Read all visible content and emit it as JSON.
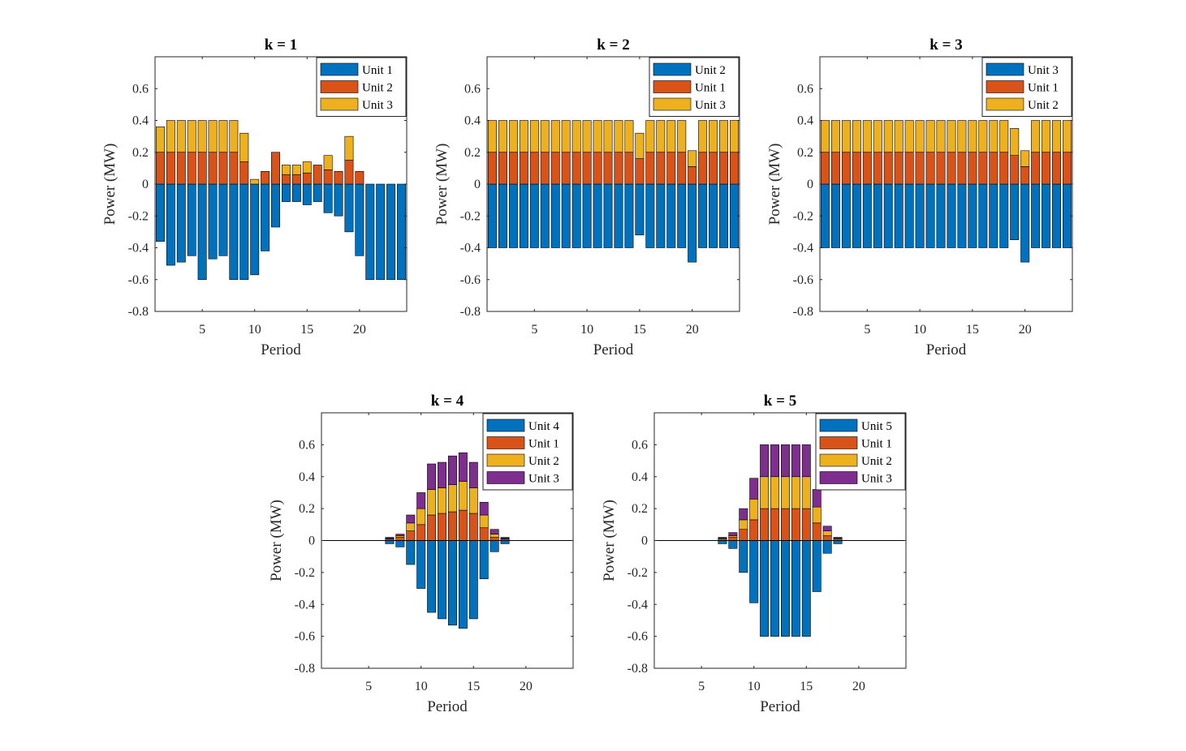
{
  "chart_data": [
    {
      "type": "bar",
      "stacked": true,
      "title": "k = 1",
      "xlabel": "Period",
      "ylabel": "Power (MW)",
      "xlim": [
        0.5,
        24.5
      ],
      "ylim": [
        -0.8,
        0.8
      ],
      "xticks": [
        5,
        10,
        15,
        20
      ],
      "yticks": [
        -0.8,
        -0.6,
        -0.4,
        -0.2,
        0,
        0.2,
        0.4,
        0.6
      ],
      "ytick_labels": [
        "-0.8",
        "-0.6",
        "-0.4",
        "-0.2",
        "0",
        "0.2",
        "0.4",
        "0.6"
      ],
      "grid": false,
      "legend_position": "top-right",
      "x": [
        1,
        2,
        3,
        4,
        5,
        6,
        7,
        8,
        9,
        10,
        11,
        12,
        13,
        14,
        15,
        16,
        17,
        18,
        19,
        20,
        21,
        22,
        23,
        24
      ],
      "series": [
        {
          "name": "Unit 1",
          "color": "#0072BD",
          "values": [
            -0.36,
            -0.51,
            -0.49,
            -0.45,
            -0.6,
            -0.47,
            -0.45,
            -0.6,
            -0.6,
            -0.57,
            -0.42,
            -0.27,
            -0.11,
            -0.11,
            -0.13,
            -0.11,
            -0.18,
            -0.2,
            -0.3,
            -0.45,
            -0.6,
            -0.6,
            -0.6,
            -0.6
          ]
        },
        {
          "name": "Unit 2",
          "color": "#D95319",
          "values": [
            0.2,
            0.2,
            0.2,
            0.2,
            0.2,
            0.2,
            0.2,
            0.2,
            0.14,
            0,
            0.08,
            0.2,
            0.06,
            0.06,
            0.07,
            0.12,
            0.09,
            0.08,
            0.15,
            0.08,
            0,
            0,
            0,
            0
          ]
        },
        {
          "name": "Unit 3",
          "color": "#EDB120",
          "values": [
            0.16,
            0.2,
            0.2,
            0.2,
            0.2,
            0.2,
            0.2,
            0.2,
            0.18,
            0.03,
            0,
            0,
            0.06,
            0.06,
            0.07,
            0,
            0.09,
            0,
            0.15,
            0,
            0,
            0,
            0,
            0
          ]
        }
      ]
    },
    {
      "type": "bar",
      "stacked": true,
      "title": "k = 2",
      "xlabel": "Period",
      "ylabel": "Power (MW)",
      "xlim": [
        0.5,
        24.5
      ],
      "ylim": [
        -0.8,
        0.8
      ],
      "xticks": [
        5,
        10,
        15,
        20
      ],
      "yticks": [
        -0.8,
        -0.6,
        -0.4,
        -0.2,
        0,
        0.2,
        0.4,
        0.6
      ],
      "ytick_labels": [
        "-0.8",
        "-0.6",
        "-0.4",
        "-0.2",
        "0",
        "0.2",
        "0.4",
        "0.6"
      ],
      "grid": false,
      "legend_position": "top-right",
      "x": [
        1,
        2,
        3,
        4,
        5,
        6,
        7,
        8,
        9,
        10,
        11,
        12,
        13,
        14,
        15,
        16,
        17,
        18,
        19,
        20,
        21,
        22,
        23,
        24
      ],
      "series": [
        {
          "name": "Unit 2",
          "color": "#0072BD",
          "values": [
            -0.4,
            -0.4,
            -0.4,
            -0.4,
            -0.4,
            -0.4,
            -0.4,
            -0.4,
            -0.4,
            -0.4,
            -0.4,
            -0.4,
            -0.4,
            -0.4,
            -0.32,
            -0.4,
            -0.4,
            -0.4,
            -0.4,
            -0.49,
            -0.4,
            -0.4,
            -0.4,
            -0.4
          ]
        },
        {
          "name": "Unit 1",
          "color": "#D95319",
          "values": [
            0.2,
            0.2,
            0.2,
            0.2,
            0.2,
            0.2,
            0.2,
            0.2,
            0.2,
            0.2,
            0.2,
            0.2,
            0.2,
            0.2,
            0.16,
            0.2,
            0.2,
            0.2,
            0.2,
            0.11,
            0.2,
            0.2,
            0.2,
            0.2
          ]
        },
        {
          "name": "Unit 3",
          "color": "#EDB120",
          "values": [
            0.2,
            0.2,
            0.2,
            0.2,
            0.2,
            0.2,
            0.2,
            0.2,
            0.2,
            0.2,
            0.2,
            0.2,
            0.2,
            0.2,
            0.16,
            0.2,
            0.2,
            0.2,
            0.2,
            0.1,
            0.2,
            0.2,
            0.2,
            0.2
          ]
        }
      ]
    },
    {
      "type": "bar",
      "stacked": true,
      "title": "k = 3",
      "xlabel": "Period",
      "ylabel": "Power (MW)",
      "xlim": [
        0.5,
        24.5
      ],
      "ylim": [
        -0.8,
        0.8
      ],
      "xticks": [
        5,
        10,
        15,
        20
      ],
      "yticks": [
        -0.8,
        -0.6,
        -0.4,
        -0.2,
        0,
        0.2,
        0.4,
        0.6
      ],
      "ytick_labels": [
        "-0.8",
        "-0.6",
        "-0.4",
        "-0.2",
        "0",
        "0.2",
        "0.4",
        "0.6"
      ],
      "grid": false,
      "legend_position": "top-right",
      "x": [
        1,
        2,
        3,
        4,
        5,
        6,
        7,
        8,
        9,
        10,
        11,
        12,
        13,
        14,
        15,
        16,
        17,
        18,
        19,
        20,
        21,
        22,
        23,
        24
      ],
      "series": [
        {
          "name": "Unit 3",
          "color": "#0072BD",
          "values": [
            -0.4,
            -0.4,
            -0.4,
            -0.4,
            -0.4,
            -0.4,
            -0.4,
            -0.4,
            -0.4,
            -0.4,
            -0.4,
            -0.4,
            -0.4,
            -0.4,
            -0.4,
            -0.4,
            -0.4,
            -0.4,
            -0.35,
            -0.49,
            -0.4,
            -0.4,
            -0.4,
            -0.4
          ]
        },
        {
          "name": "Unit 1",
          "color": "#D95319",
          "values": [
            0.2,
            0.2,
            0.2,
            0.2,
            0.2,
            0.2,
            0.2,
            0.2,
            0.2,
            0.2,
            0.2,
            0.2,
            0.2,
            0.2,
            0.2,
            0.2,
            0.2,
            0.2,
            0.18,
            0.11,
            0.2,
            0.2,
            0.2,
            0.2
          ]
        },
        {
          "name": "Unit 2",
          "color": "#EDB120",
          "values": [
            0.2,
            0.2,
            0.2,
            0.2,
            0.2,
            0.2,
            0.2,
            0.2,
            0.2,
            0.2,
            0.2,
            0.2,
            0.2,
            0.2,
            0.2,
            0.2,
            0.2,
            0.2,
            0.17,
            0.1,
            0.2,
            0.2,
            0.2,
            0.2
          ]
        }
      ]
    },
    {
      "type": "bar",
      "stacked": true,
      "title": "k = 4",
      "xlabel": "Period",
      "ylabel": "Power (MW)",
      "xlim": [
        0.5,
        24.5
      ],
      "ylim": [
        -0.8,
        0.8
      ],
      "xticks": [
        5,
        10,
        15,
        20
      ],
      "yticks": [
        -0.8,
        -0.6,
        -0.4,
        -0.2,
        0,
        0.2,
        0.4,
        0.6
      ],
      "ytick_labels": [
        "-0.8",
        "-0.6",
        "-0.4",
        "-0.2",
        "0",
        "0.2",
        "0.4",
        "0.6"
      ],
      "grid": false,
      "zero_line": true,
      "legend_position": "top-right",
      "x": [
        1,
        2,
        3,
        4,
        5,
        6,
        7,
        8,
        9,
        10,
        11,
        12,
        13,
        14,
        15,
        16,
        17,
        18,
        19,
        20,
        21,
        22,
        23,
        24
      ],
      "series": [
        {
          "name": "Unit 4",
          "color": "#0072BD",
          "values": [
            0,
            0,
            0,
            0,
            0,
            0,
            -0.02,
            -0.04,
            -0.15,
            -0.3,
            -0.45,
            -0.49,
            -0.53,
            -0.55,
            -0.49,
            -0.24,
            -0.07,
            -0.02,
            0,
            0,
            0,
            0,
            0,
            0
          ]
        },
        {
          "name": "Unit 1",
          "color": "#D95319",
          "values": [
            0,
            0,
            0,
            0,
            0,
            0,
            0.01,
            0.02,
            0.06,
            0.1,
            0.16,
            0.17,
            0.18,
            0.19,
            0.17,
            0.08,
            0.02,
            0.01,
            0,
            0,
            0,
            0,
            0,
            0
          ]
        },
        {
          "name": "Unit 2",
          "color": "#EDB120",
          "values": [
            0,
            0,
            0,
            0,
            0,
            0,
            0.003,
            0.01,
            0.05,
            0.1,
            0.16,
            0.16,
            0.17,
            0.18,
            0.16,
            0.08,
            0.02,
            0.003,
            0,
            0,
            0,
            0,
            0,
            0
          ]
        },
        {
          "name": "Unit 3",
          "color": "#7E2F8E",
          "values": [
            0,
            0,
            0,
            0,
            0,
            0,
            0.007,
            0.01,
            0.05,
            0.1,
            0.16,
            0.16,
            0.18,
            0.18,
            0.16,
            0.08,
            0.03,
            0.007,
            0,
            0,
            0,
            0,
            0,
            0
          ]
        }
      ]
    },
    {
      "type": "bar",
      "stacked": true,
      "title": "k = 5",
      "xlabel": "Period",
      "ylabel": "Power (MW)",
      "xlim": [
        0.5,
        24.5
      ],
      "ylim": [
        -0.8,
        0.8
      ],
      "xticks": [
        5,
        10,
        15,
        20
      ],
      "yticks": [
        -0.8,
        -0.6,
        -0.4,
        -0.2,
        0,
        0.2,
        0.4,
        0.6
      ],
      "ytick_labels": [
        "-0.8",
        "-0.6",
        "-0.4",
        "-0.2",
        "0",
        "0.2",
        "0.4",
        "0.6"
      ],
      "grid": false,
      "zero_line": true,
      "legend_position": "top-right",
      "x": [
        1,
        2,
        3,
        4,
        5,
        6,
        7,
        8,
        9,
        10,
        11,
        12,
        13,
        14,
        15,
        16,
        17,
        18,
        19,
        20,
        21,
        22,
        23,
        24
      ],
      "series": [
        {
          "name": "Unit 5",
          "color": "#0072BD",
          "values": [
            0,
            0,
            0,
            0,
            0,
            0,
            -0.02,
            -0.05,
            -0.2,
            -0.39,
            -0.6,
            -0.6,
            -0.6,
            -0.6,
            -0.6,
            -0.32,
            -0.08,
            -0.02,
            0,
            0,
            0,
            0,
            0,
            0
          ]
        },
        {
          "name": "Unit 1",
          "color": "#D95319",
          "values": [
            0,
            0,
            0,
            0,
            0,
            0,
            0.01,
            0.02,
            0.07,
            0.13,
            0.2,
            0.2,
            0.2,
            0.2,
            0.2,
            0.11,
            0.03,
            0.01,
            0,
            0,
            0,
            0,
            0,
            0
          ]
        },
        {
          "name": "Unit 2",
          "color": "#EDB120",
          "values": [
            0,
            0,
            0,
            0,
            0,
            0,
            0.005,
            0.01,
            0.06,
            0.13,
            0.2,
            0.2,
            0.2,
            0.2,
            0.2,
            0.1,
            0.03,
            0.005,
            0,
            0,
            0,
            0,
            0,
            0
          ]
        },
        {
          "name": "Unit 3",
          "color": "#7E2F8E",
          "values": [
            0,
            0,
            0,
            0,
            0,
            0,
            0.005,
            0.02,
            0.07,
            0.13,
            0.2,
            0.2,
            0.2,
            0.2,
            0.2,
            0.11,
            0.03,
            0.005,
            0,
            0,
            0,
            0,
            0,
            0
          ]
        }
      ]
    }
  ]
}
